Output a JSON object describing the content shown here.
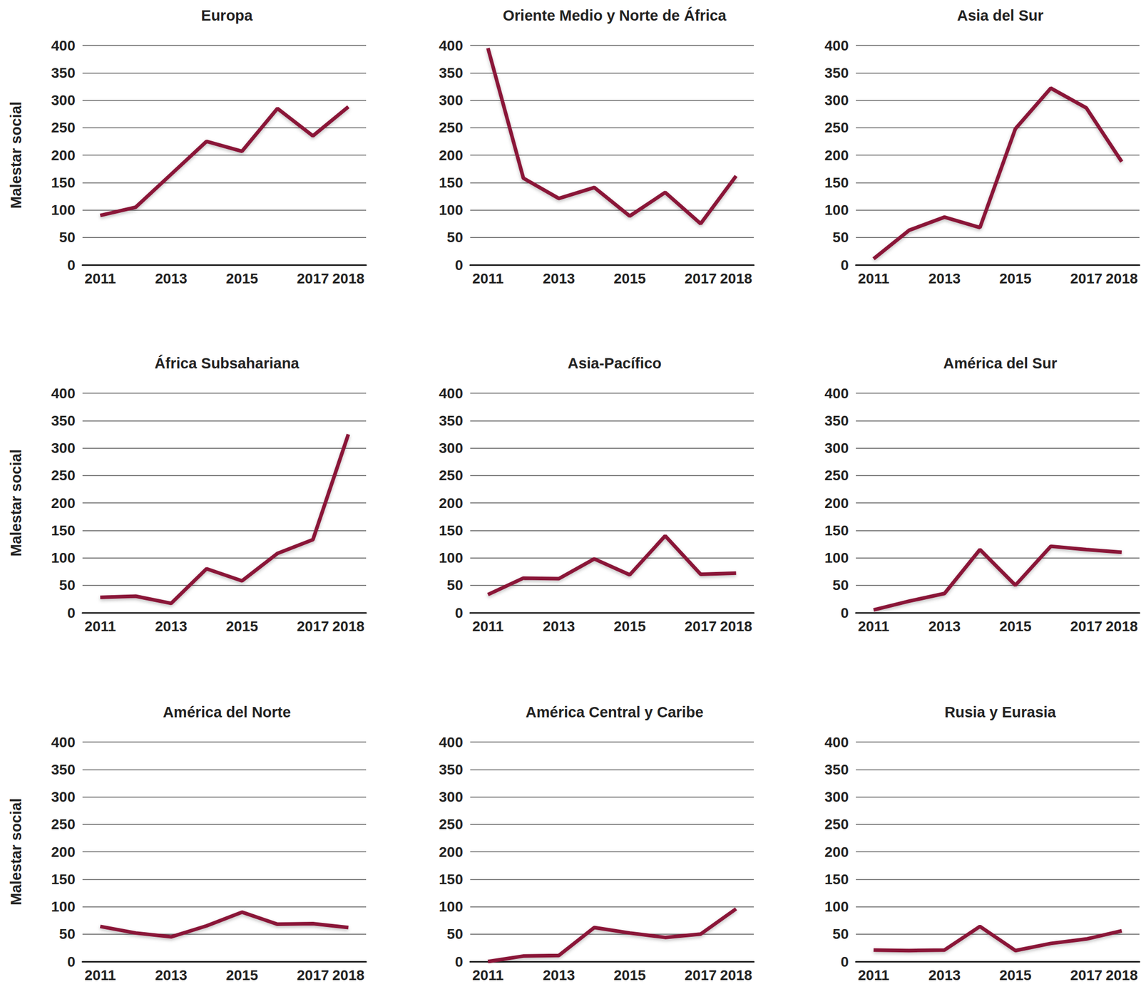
{
  "chart_data": [
    {
      "type": "line",
      "title": "Europa",
      "ylabel": "Malestar social",
      "categories": [
        "2011",
        null,
        "2013",
        null,
        "2015",
        null,
        "2017",
        "2018"
      ],
      "values": [
        90,
        105,
        165,
        225,
        207,
        285,
        235,
        288
      ],
      "color": "#8a1538",
      "ylim": [
        0,
        400
      ],
      "yticks": [
        0,
        50,
        100,
        150,
        200,
        250,
        300,
        350,
        400
      ],
      "grid": true
    },
    {
      "type": "line",
      "title": "Oriente Medio y Norte de África",
      "categories": [
        "2011",
        null,
        "2013",
        null,
        "2015",
        null,
        "2017",
        "2018"
      ],
      "values": [
        395,
        158,
        121,
        141,
        89,
        132,
        75,
        162
      ],
      "color": "#8a1538",
      "ylim": [
        0,
        400
      ],
      "yticks": [
        0,
        50,
        100,
        150,
        200,
        250,
        300,
        350,
        400
      ],
      "grid": true
    },
    {
      "type": "line",
      "title": "Asia del Sur",
      "categories": [
        "2011",
        null,
        "2013",
        null,
        "2015",
        null,
        "2017",
        "2018"
      ],
      "values": [
        11,
        63,
        87,
        68,
        248,
        322,
        286,
        188
      ],
      "color": "#8a1538",
      "ylim": [
        0,
        400
      ],
      "yticks": [
        0,
        50,
        100,
        150,
        200,
        250,
        300,
        350,
        400
      ],
      "grid": true
    },
    {
      "type": "line",
      "title": "África Subsahariana",
      "ylabel": "Malestar social",
      "categories": [
        "2011",
        null,
        "2013",
        null,
        "2015",
        null,
        "2017",
        "2018"
      ],
      "values": [
        28,
        30,
        17,
        80,
        58,
        108,
        133,
        325
      ],
      "color": "#8a1538",
      "ylim": [
        0,
        400
      ],
      "yticks": [
        0,
        50,
        100,
        150,
        200,
        250,
        300,
        350,
        400
      ],
      "grid": true
    },
    {
      "type": "line",
      "title": "Asia-Pacífico",
      "categories": [
        "2011",
        null,
        "2013",
        null,
        "2015",
        null,
        "2017",
        "2018"
      ],
      "values": [
        33,
        63,
        62,
        98,
        69,
        140,
        70,
        72
      ],
      "color": "#8a1538",
      "ylim": [
        0,
        400
      ],
      "yticks": [
        0,
        50,
        100,
        150,
        200,
        250,
        300,
        350,
        400
      ],
      "grid": true
    },
    {
      "type": "line",
      "title": "América del Sur",
      "categories": [
        "2011",
        null,
        "2013",
        null,
        "2015",
        null,
        "2017",
        "2018"
      ],
      "values": [
        5,
        21,
        35,
        115,
        50,
        121,
        115,
        110
      ],
      "color": "#8a1538",
      "ylim": [
        0,
        400
      ],
      "yticks": [
        0,
        50,
        100,
        150,
        200,
        250,
        300,
        350,
        400
      ],
      "grid": true
    },
    {
      "type": "line",
      "title": "América del Norte",
      "ylabel": "Malestar social",
      "categories": [
        "2011",
        null,
        "2013",
        null,
        "2015",
        null,
        "2017",
        "2018"
      ],
      "values": [
        64,
        52,
        45,
        65,
        90,
        68,
        69,
        62
      ],
      "color": "#8a1538",
      "ylim": [
        0,
        400
      ],
      "yticks": [
        0,
        50,
        100,
        150,
        200,
        250,
        300,
        350,
        400
      ],
      "grid": true
    },
    {
      "type": "line",
      "title": "América Central y Caribe",
      "categories": [
        "2011",
        null,
        "2013",
        null,
        "2015",
        null,
        "2017",
        "2018"
      ],
      "values": [
        0,
        10,
        11,
        62,
        52,
        44,
        50,
        96
      ],
      "color": "#8a1538",
      "ylim": [
        0,
        400
      ],
      "yticks": [
        0,
        50,
        100,
        150,
        200,
        250,
        300,
        350,
        400
      ],
      "grid": true
    },
    {
      "type": "line",
      "title": "Rusia y Eurasia",
      "categories": [
        "2011",
        null,
        "2013",
        null,
        "2015",
        null,
        "2017",
        "2018"
      ],
      "values": [
        21,
        20,
        21,
        64,
        20,
        33,
        41,
        56
      ],
      "color": "#8a1538",
      "ylim": [
        0,
        400
      ],
      "yticks": [
        0,
        50,
        100,
        150,
        200,
        250,
        300,
        350,
        400
      ],
      "grid": true
    }
  ]
}
